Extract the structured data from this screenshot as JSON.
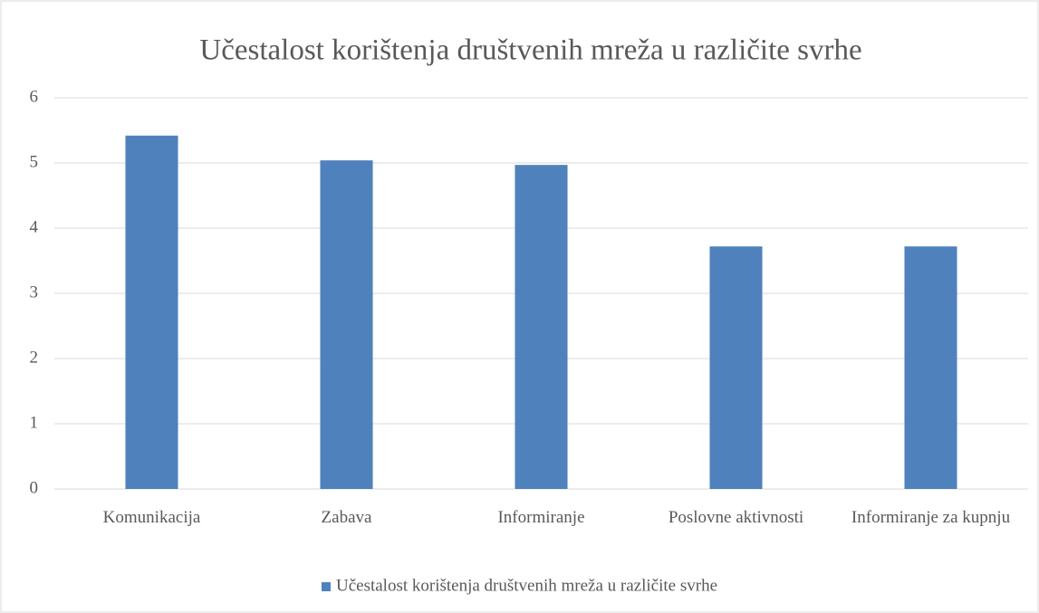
{
  "chart_data": {
    "type": "bar",
    "title": "Učestalost korištenja društvenih mreža u različite svrhe",
    "categories": [
      "Komunikacija",
      "Zabava",
      "Informiranje",
      "Poslovne aktivnosti",
      "Informiranje za kupnju"
    ],
    "series": [
      {
        "name": "Učestalost korištenja društvenih mreža u različite svrhe",
        "color": "#4f81bd",
        "values": [
          5.42,
          5.04,
          4.97,
          3.72,
          3.72
        ]
      }
    ],
    "ylim": [
      0,
      6
    ],
    "yticks": [
      0,
      1,
      2,
      3,
      4,
      5,
      6
    ],
    "grid": true,
    "legend": "bottom"
  }
}
